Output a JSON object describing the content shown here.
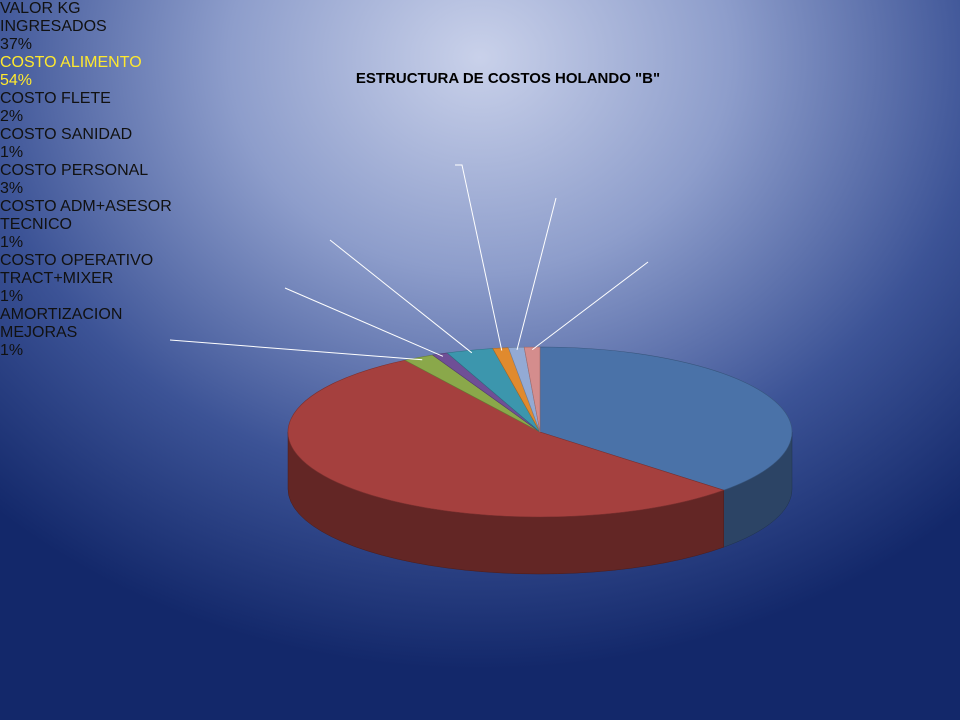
{
  "chart_data": {
    "type": "pie",
    "title": "ESTRUCTURA DE COSTOS HOLANDO \"B\"",
    "categories": [
      "VALOR KG INGRESADOS",
      "COSTO ALIMENTO",
      "COSTO FLETE",
      "COSTO SANIDAD",
      "COSTO PERSONAL",
      "COSTO ADM+ASESOR TECNICO",
      "COSTO OPERATIVO TRACT+MIXER",
      "AMORTIZACION MEJORAS"
    ],
    "values": [
      37,
      54,
      2,
      1,
      3,
      1,
      1,
      1
    ],
    "value_labels": [
      "37%",
      "54%",
      "2%",
      "1%",
      "3%",
      "1%",
      "1%",
      "1%"
    ],
    "colors": [
      "#4a72a8",
      "#a5403e",
      "#8aa84a",
      "#6f4f96",
      "#3c96ad",
      "#e08a2e",
      "#93aad4",
      "#d48d8d"
    ]
  }
}
